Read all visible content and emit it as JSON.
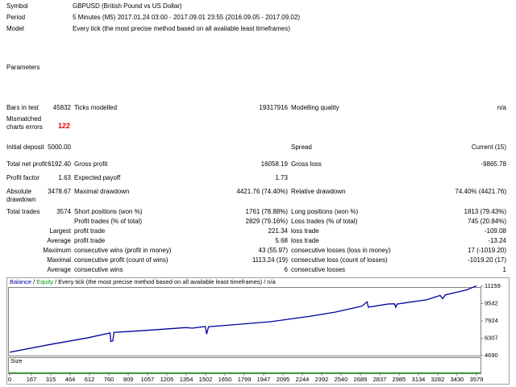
{
  "header": {
    "rows": [
      [
        "Symbol",
        "GBPUSD (British Pound vs US Dollar)"
      ],
      [
        "Period",
        "5 Minutes (M5) 2017.01.24 03:00 - 2017.09.01 23:55 (2016.09.05 - 2017.09.02)"
      ],
      [
        "Model",
        "Every tick (the most precise method based on all available least timeframes)"
      ]
    ]
  },
  "parameters": "Parameters",
  "mismatched": [
    "Mismatched charts errors",
    "122"
  ],
  "stats": [
    [
      "Bars in test",
      "45832",
      "Ticks modelled",
      "19317916",
      "Modelling quality",
      "n/a"
    ],
    [
      "Initial deposit",
      "5000.00",
      "Spread",
      "Current (15)"
    ],
    [
      "Total net profit",
      "6192.40",
      "Gross profit",
      "16058.19",
      "Gross loss",
      "-9865.78"
    ],
    [
      "Profit factor",
      "1.63",
      "Expected payoff",
      "1.73"
    ],
    [
      "Absolute drawdown",
      "3478.67",
      "Maximal drawdown",
      "4421.76 (74.40%)",
      "Relative drawdown",
      "74.40% (4421.76)"
    ],
    [
      "Total trades",
      "3574",
      "Short positions (won %)",
      "1761 (78.88%)",
      "Long positions (won %)",
      "1813 (79.43%)"
    ],
    [
      "Profit trades (% of total)",
      "2829 (79.16%)",
      "Loss trades (% of total)",
      "745 (20.84%)"
    ],
    [
      "Largest",
      "profit trade",
      "221.34",
      "loss trade",
      "-109.08"
    ],
    [
      "Average",
      "profit trade",
      "5.68",
      "loss trade",
      "-13.24"
    ],
    [
      "Maximum",
      "consecutive wins (profit in money)",
      "43 (55.97)",
      "consecutive losses (loss in money)",
      "17 (-1019.20)"
    ],
    [
      "Maximal",
      "consecutive profit (count of wins)",
      "1113.24 (19)",
      "consecutive loss (count of losses)",
      "-1019.20 (17)"
    ],
    [
      "Average",
      "consecutive wins",
      "6",
      "consecutive losses",
      "1"
    ]
  ],
  "chart_data": {
    "type": "line",
    "title": "Every tick (the most precise method based on all available least timeframes)",
    "separator": "/",
    "quality": "n/a",
    "equity": {
      "name": "Equity",
      "color": "#00a000"
    },
    "size_label": "Size",
    "x": [
      0,
      300,
      600,
      770,
      775,
      790,
      800,
      1000,
      1350,
      1400,
      1500,
      1510,
      1525,
      1700,
      2000,
      2300,
      2500,
      2700,
      2740,
      2750,
      2900,
      2950,
      2960,
      2970,
      3200,
      3300,
      3320,
      3340,
      3500,
      3579
    ],
    "series": [
      {
        "name": "Balance",
        "color": "#0000a0",
        "values": [
          5000,
          5700,
          6350,
          6800,
          6000,
          6050,
          6850,
          7000,
          7300,
          7250,
          7400,
          6700,
          7380,
          7550,
          7850,
          8350,
          8750,
          9300,
          9700,
          9200,
          9500,
          9520,
          9200,
          9500,
          9900,
          10300,
          10000,
          10350,
          10800,
          11192.4
        ]
      }
    ],
    "xlim": [
      0,
      3579
    ],
    "ylim": [
      4690,
      11159
    ],
    "xticks": [
      0,
      167,
      315,
      464,
      612,
      760,
      909,
      1057,
      1205,
      1354,
      1502,
      1650,
      1799,
      1947,
      2095,
      2244,
      2392,
      2540,
      2689,
      2837,
      2985,
      3134,
      3282,
      3430,
      3579
    ],
    "yticks": [
      4690,
      6307,
      7924,
      9542,
      11159
    ]
  }
}
